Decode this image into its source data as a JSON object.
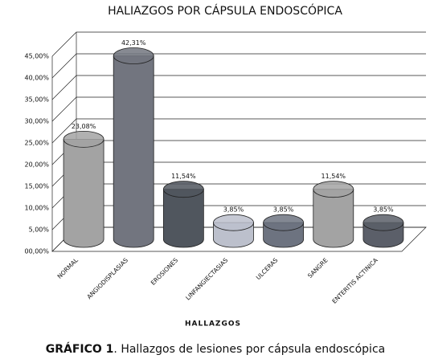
{
  "chart_data": {
    "type": "cylinder-bar",
    "title": "HALIAZGOS POR CÁPSULA ENDOSCÓPICA",
    "x_label": "HALLAZGOS",
    "categories": [
      "NORMAL",
      "ANGIODISPLASIAS",
      "EROSIONES",
      "LINFANGIECTASIAS",
      "ULCERAS",
      "SANGRE",
      "ENTERITIS ACTINICA"
    ],
    "values": [
      23.08,
      42.31,
      11.54,
      3.85,
      3.85,
      11.54,
      3.85
    ],
    "value_labels": [
      "23,08%",
      "42,31%",
      "11,54%",
      "3,85%",
      "3,85%",
      "11,54%",
      "3,85%"
    ],
    "colors": [
      "#a3a3a3",
      "#72757f",
      "#50565e",
      "#bcc0cc",
      "#6d7380",
      "#a3a3a3",
      "#5b5f69"
    ],
    "ylim": [
      0,
      45
    ],
    "yticks": [
      {
        "value": 0,
        "label": "00,00%"
      },
      {
        "value": 5,
        "label": "5,00%"
      },
      {
        "value": 10,
        "label": "10,00%"
      },
      {
        "value": 15,
        "label": "15,00%"
      },
      {
        "value": 20,
        "label": "20,00%"
      },
      {
        "value": 25,
        "label": "25,00%"
      },
      {
        "value": 30,
        "label": "30,00%"
      },
      {
        "value": 35,
        "label": "35,00%"
      },
      {
        "value": 40,
        "label": "40,00%"
      },
      {
        "value": 45,
        "label": "45,00%"
      }
    ],
    "grid": true
  },
  "caption": {
    "label": "GRÁFICO 1",
    "text": ". Hallazgos de lesiones por cápsula endoscópica"
  }
}
